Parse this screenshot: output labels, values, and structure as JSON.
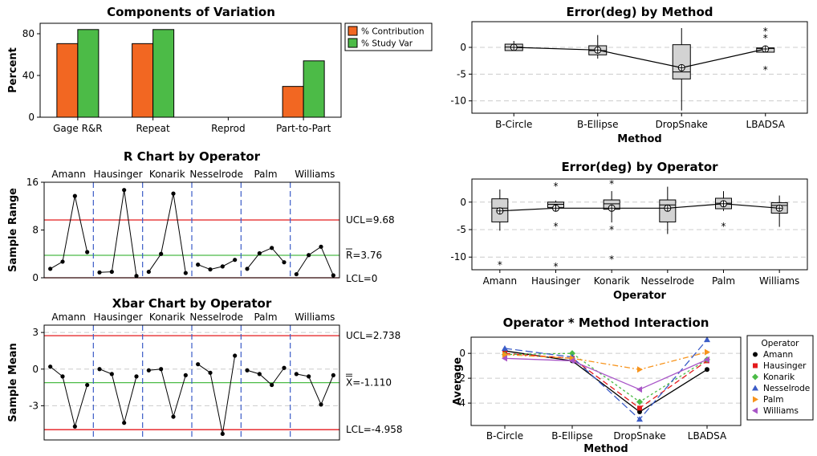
{
  "colors": {
    "contribution": "#f26722",
    "study_var": "#4cbb47",
    "control_limit": "#e41a1c",
    "center_line": "#4cbb47",
    "divider": "#3b5cc7",
    "box_fill": "#d3d3d3",
    "gridline": "#cccccc"
  },
  "chart_data": [
    {
      "id": "components",
      "type": "bar",
      "title": "Components of Variation",
      "ylabel": "Percent",
      "categories": [
        "Gage R&R",
        "Repeat",
        "Reprod",
        "Part-to-Part"
      ],
      "ylim": [
        0,
        90
      ],
      "yticks": [
        0,
        40,
        80
      ],
      "series": [
        {
          "name": "% Contribution",
          "values": [
            70.5,
            70.5,
            0,
            29.5
          ]
        },
        {
          "name": "% Study Var",
          "values": [
            84,
            84,
            0,
            54
          ]
        }
      ]
    },
    {
      "id": "rchart",
      "type": "line",
      "title": "R Chart by Operator",
      "ylabel": "Sample Range",
      "operators": [
        "Amann",
        "Hausinger",
        "Konarik",
        "Nesselrode",
        "Palm",
        "Williams"
      ],
      "groups": [
        [
          1.5,
          2.7,
          13.7,
          4.3
        ],
        [
          0.9,
          1.0,
          14.7,
          0.3
        ],
        [
          1.0,
          4.0,
          14.1,
          0.8
        ],
        [
          2.2,
          1.4,
          1.9,
          3.0
        ],
        [
          1.5,
          4.1,
          5.0,
          2.6
        ],
        [
          0.6,
          3.8,
          5.2,
          0.4
        ]
      ],
      "ylim": [
        0,
        16
      ],
      "yticks": [
        0,
        8,
        16
      ],
      "ucl": 9.68,
      "center": 3.76,
      "lcl": 0,
      "ucl_label": "UCL=9.68",
      "center_label": "R=3.76",
      "lcl_label": "LCL=0"
    },
    {
      "id": "xbar",
      "type": "line",
      "title": "Xbar Chart by Operator",
      "ylabel": "Sample Mean",
      "operators": [
        "Amann",
        "Hausinger",
        "Konarik",
        "Nesselrode",
        "Palm",
        "Williams"
      ],
      "groups": [
        [
          0.2,
          -0.6,
          -4.7,
          -1.3
        ],
        [
          0.0,
          -0.4,
          -4.4,
          -0.6
        ],
        [
          -0.1,
          0.0,
          -3.9,
          -0.5
        ],
        [
          0.4,
          -0.3,
          -5.3,
          1.1
        ],
        [
          -0.1,
          -0.4,
          -1.3,
          0.1
        ],
        [
          -0.4,
          -0.6,
          -2.9,
          -0.5
        ]
      ],
      "ylim": [
        -5.8,
        3.6
      ],
      "yticks": [
        -3,
        0,
        3
      ],
      "ucl": 2.738,
      "center": -1.11,
      "lcl": -4.958,
      "ucl_label": "UCL=2.738",
      "center_label": "X=-1.110",
      "lcl_label": "LCL=-4.958"
    },
    {
      "id": "by_method",
      "type": "box",
      "title": "Error(deg) by Method",
      "xlabel": "Method",
      "categories": [
        "B-Circle",
        "B-Ellipse",
        "DropSnake",
        "LBADSA"
      ],
      "ylim": [
        -12.3,
        4.8
      ],
      "yticks": [
        0,
        -5,
        -10
      ],
      "boxes": [
        {
          "min": -0.6,
          "q1": -0.6,
          "median": 0.05,
          "q3": 0.6,
          "max": 1.2,
          "mean": 0.0,
          "outliers": []
        },
        {
          "min": -2.1,
          "q1": -1.4,
          "median": -0.6,
          "q3": 0.3,
          "max": 2.3,
          "mean": -0.5,
          "outliers": []
        },
        {
          "min": -11.8,
          "q1": -5.9,
          "median": -4.6,
          "q3": 0.5,
          "max": 3.6,
          "mean": -3.8,
          "outliers": []
        },
        {
          "min": -0.9,
          "q1": -0.9,
          "median": -0.2,
          "q3": -0.1,
          "max": 0.3,
          "mean": -0.3,
          "outliers": [
            3.0,
            1.7,
            -4.2
          ]
        }
      ]
    },
    {
      "id": "by_operator",
      "type": "box",
      "title": "Error(deg) by Operator",
      "xlabel": "Operator",
      "categories": [
        "Amann",
        "Hausinger",
        "Konarik",
        "Nesselrode",
        "Palm",
        "Williams"
      ],
      "ylim": [
        -12.3,
        4.2
      ],
      "yticks": [
        0,
        -5,
        -10
      ],
      "boxes": [
        {
          "min": -5.2,
          "q1": -3.6,
          "median": -1.1,
          "q3": 0.6,
          "max": 2.3,
          "mean": -1.6,
          "outliers": [
            -11.4
          ]
        },
        {
          "min": -1.3,
          "q1": -1.0,
          "median": -0.4,
          "q3": 0.0,
          "max": 0.3,
          "mean": -1.1,
          "outliers": [
            2.9,
            -4.4,
            -11.7
          ]
        },
        {
          "min": -3.7,
          "q1": -1.3,
          "median": -0.3,
          "q3": 0.4,
          "max": 2.0,
          "mean": -1.1,
          "outliers": [
            3.3,
            -5.0,
            -10.4
          ]
        },
        {
          "min": -5.8,
          "q1": -3.6,
          "median": -0.5,
          "q3": 0.4,
          "max": 2.8,
          "mean": -1.1,
          "outliers": []
        },
        {
          "min": -1.6,
          "q1": -1.2,
          "median": -0.2,
          "q3": 0.7,
          "max": 2.0,
          "mean": -0.3,
          "outliers": [
            -4.4
          ]
        },
        {
          "min": -4.5,
          "q1": -2.0,
          "median": -0.6,
          "q3": -0.1,
          "max": 1.2,
          "mean": -1.1,
          "outliers": []
        }
      ]
    },
    {
      "id": "interaction",
      "type": "line",
      "title": "Operator * Method Interaction",
      "ylabel": "Average",
      "xlabel": "Method",
      "categories": [
        "B-Circle",
        "B-Ellipse",
        "DropSnake",
        "LBADSA"
      ],
      "ylim": [
        -5.8,
        1.3
      ],
      "yticks": [
        0,
        -2,
        -4
      ],
      "legend_title": "Operator",
      "legend_position": "right",
      "series": [
        {
          "name": "Amann",
          "values": [
            0.2,
            -0.6,
            -4.7,
            -1.3
          ],
          "color": "#000000",
          "marker": "circle",
          "dash": ""
        },
        {
          "name": "Hausinger",
          "values": [
            0.0,
            -0.4,
            -4.4,
            -0.6
          ],
          "color": "#e41a1c",
          "marker": "square",
          "dash": "7,4"
        },
        {
          "name": "Konarik",
          "values": [
            -0.1,
            0.0,
            -3.9,
            -0.5
          ],
          "color": "#4cbb47",
          "marker": "diamond",
          "dash": "3,3"
        },
        {
          "name": "Nesselrode",
          "values": [
            0.4,
            -0.3,
            -5.3,
            1.1
          ],
          "color": "#3b5cc7",
          "marker": "triangle",
          "dash": "9,4"
        },
        {
          "name": "Palm",
          "values": [
            -0.1,
            -0.4,
            -1.3,
            0.1
          ],
          "color": "#f7941d",
          "marker": "tri-right",
          "dash": "7,3,2,3"
        },
        {
          "name": "Williams",
          "values": [
            -0.4,
            -0.6,
            -2.9,
            -0.5
          ],
          "color": "#a855c7",
          "marker": "tri-left",
          "dash": ""
        }
      ]
    }
  ]
}
